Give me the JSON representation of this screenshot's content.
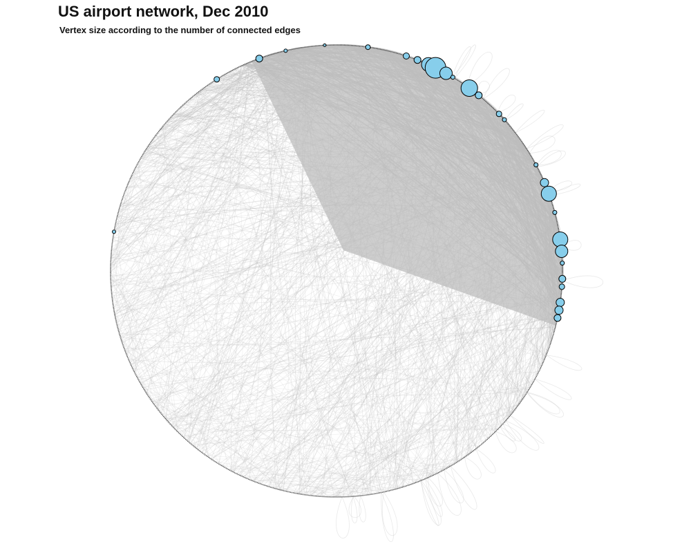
{
  "header": {
    "title": "US airport network, Dec 2010",
    "subtitle": "Vertex size according to the number of connected edges"
  },
  "graph": {
    "layout": "circle",
    "edge_color": "#bebebe",
    "vertex_fill": "#87ceeb",
    "vertex_stroke": "#000000",
    "hub_vertices": [
      {
        "angle": -110,
        "size": 5
      },
      {
        "angle": -103,
        "size": 2.5
      },
      {
        "angle": -93,
        "size": 2
      },
      {
        "angle": -82,
        "size": 3.5
      },
      {
        "angle": -72,
        "size": 4.5
      },
      {
        "angle": -69,
        "size": 5
      },
      {
        "angle": -66,
        "size": 10
      },
      {
        "angle": -64,
        "size": 15
      },
      {
        "angle": -61,
        "size": 9
      },
      {
        "angle": -59,
        "size": 3
      },
      {
        "angle": -54,
        "size": 12
      },
      {
        "angle": -51,
        "size": 5
      },
      {
        "angle": -44,
        "size": 4
      },
      {
        "angle": -42,
        "size": 3
      },
      {
        "angle": -28,
        "size": 3
      },
      {
        "angle": -23,
        "size": 6
      },
      {
        "angle": -20,
        "size": 11
      },
      {
        "angle": -15,
        "size": 3
      },
      {
        "angle": -8,
        "size": 11
      },
      {
        "angle": -5,
        "size": 9
      },
      {
        "angle": -2,
        "size": 3
      },
      {
        "angle": 2,
        "size": 5
      },
      {
        "angle": 4,
        "size": 4
      },
      {
        "angle": 8,
        "size": 6
      },
      {
        "angle": 10,
        "size": 6
      },
      {
        "angle": 12,
        "size": 5
      },
      {
        "angle": -122,
        "size": 4
      },
      {
        "angle": -170,
        "size": 2.5
      }
    ]
  }
}
